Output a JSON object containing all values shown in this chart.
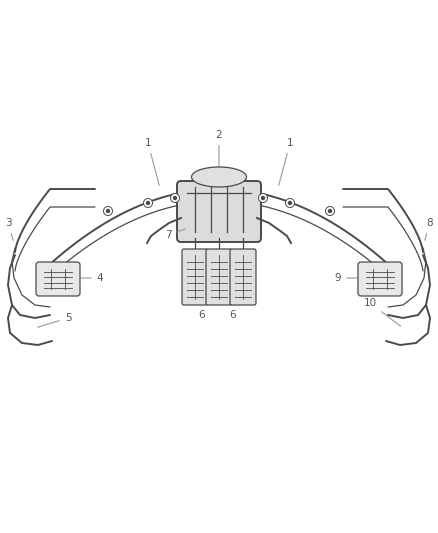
{
  "bg_color": "#ffffff",
  "line_color": "#4a4a4a",
  "label_color": "#555555",
  "leader_color": "#999999",
  "fig_width": 4.38,
  "fig_height": 5.33,
  "dpi": 100,
  "label_fontsize": 7.5
}
